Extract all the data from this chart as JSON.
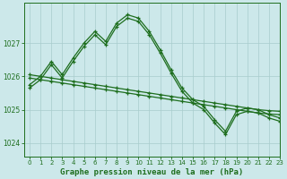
{
  "title": "Graphe pression niveau de la mer (hPa)",
  "bg_color": "#cce8ea",
  "grid_color": "#a8cccc",
  "line_color": "#1e6e1e",
  "x_min": -0.5,
  "x_max": 23,
  "y_min": 1023.6,
  "y_max": 1028.2,
  "yticks": [
    1024,
    1025,
    1026,
    1027
  ],
  "xticks": [
    0,
    1,
    2,
    3,
    4,
    5,
    6,
    7,
    8,
    9,
    10,
    11,
    12,
    13,
    14,
    15,
    16,
    17,
    18,
    19,
    20,
    21,
    22,
    23
  ],
  "series": [
    {
      "x": [
        0,
        1,
        2,
        3,
        4,
        5,
        6,
        7,
        8,
        9,
        10,
        11,
        12,
        13,
        14,
        15,
        16,
        17,
        18,
        19,
        20,
        21,
        22,
        23
      ],
      "y": [
        1025.75,
        1026.0,
        1026.45,
        1026.05,
        1026.55,
        1027.0,
        1027.35,
        1027.05,
        1027.6,
        1027.85,
        1027.75,
        1027.35,
        1026.8,
        1026.2,
        1025.65,
        1025.3,
        1025.1,
        1024.7,
        1024.35,
        1024.95,
        1025.05,
        1025.0,
        1024.85,
        1024.75
      ]
    },
    {
      "x": [
        0,
        1,
        2,
        3,
        4,
        5,
        6,
        7,
        8,
        9,
        10,
        11,
        12,
        13,
        14,
        15,
        16,
        17,
        18,
        19,
        20,
        21,
        22,
        23
      ],
      "y": [
        1025.65,
        1025.9,
        1026.35,
        1025.95,
        1026.45,
        1026.9,
        1027.25,
        1026.95,
        1027.5,
        1027.75,
        1027.65,
        1027.25,
        1026.7,
        1026.1,
        1025.55,
        1025.2,
        1025.0,
        1024.6,
        1024.25,
        1024.85,
        1024.95,
        1024.9,
        1024.75,
        1024.65
      ]
    },
    {
      "x": [
        0,
        1,
        2,
        3,
        4,
        5,
        6,
        7,
        8,
        9,
        10,
        11,
        12,
        13,
        14,
        15,
        16,
        17,
        18,
        19,
        20,
        21,
        22,
        23
      ],
      "y": [
        1025.95,
        1025.9,
        1025.85,
        1025.8,
        1025.75,
        1025.7,
        1025.65,
        1025.6,
        1025.55,
        1025.5,
        1025.45,
        1025.4,
        1025.35,
        1025.3,
        1025.25,
        1025.2,
        1025.15,
        1025.1,
        1025.05,
        1025.0,
        1024.95,
        1024.9,
        1024.87,
        1024.85
      ]
    },
    {
      "x": [
        0,
        1,
        2,
        3,
        4,
        5,
        6,
        7,
        8,
        9,
        10,
        11,
        12,
        13,
        14,
        15,
        16,
        17,
        18,
        19,
        20,
        21,
        22,
        23
      ],
      "y": [
        1026.05,
        1026.0,
        1025.95,
        1025.9,
        1025.85,
        1025.8,
        1025.75,
        1025.7,
        1025.65,
        1025.6,
        1025.55,
        1025.5,
        1025.45,
        1025.4,
        1025.35,
        1025.3,
        1025.25,
        1025.2,
        1025.15,
        1025.1,
        1025.05,
        1025.0,
        1024.97,
        1024.95
      ]
    }
  ]
}
